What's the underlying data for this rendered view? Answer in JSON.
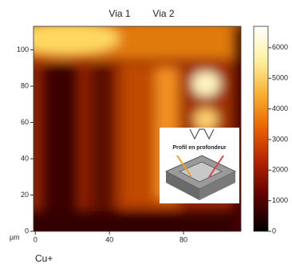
{
  "chart_data": {
    "type": "heatmap",
    "annotations": [
      "Via 1",
      "Via 2"
    ],
    "x_unit_label": "µm",
    "caption": "Cu+",
    "inset_label": "Profil en profondeur",
    "xlim": [
      -1,
      111
    ],
    "xticks": [
      0,
      40,
      80
    ],
    "ylim": [
      0,
      113
    ],
    "yticks": [
      0,
      20,
      40,
      60,
      80,
      100
    ],
    "clim": [
      0,
      6700
    ],
    "cticks": [
      0,
      1000,
      2000,
      3000,
      4000,
      5000,
      6000
    ],
    "colormap": [
      "#000000",
      "#5a0000",
      "#b02000",
      "#e86000",
      "#f8b030",
      "#fff0a0",
      "#ffffff"
    ]
  }
}
